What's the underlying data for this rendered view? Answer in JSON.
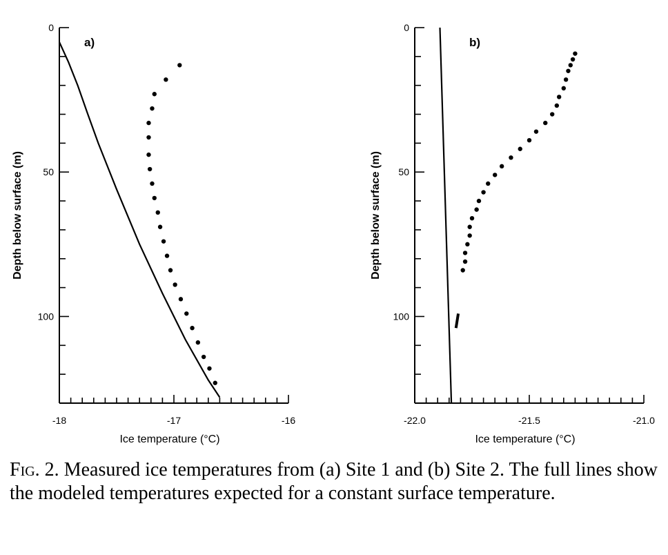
{
  "chart_data": [
    {
      "type": "scatter",
      "panel_label": "a)",
      "xlabel": "Ice temperature (°C)",
      "ylabel": "Depth below surface (m)",
      "xlim": [
        -18,
        -16
      ],
      "ylim": [
        130,
        0
      ],
      "x_ticks": [
        -18,
        -17,
        -16
      ],
      "x_tick_labels": [
        "-18",
        "-17",
        "-16"
      ],
      "x_minor_step": 0.1,
      "y_ticks": [
        0,
        50,
        100
      ],
      "y_tick_labels": [
        "0",
        "50",
        "100"
      ],
      "y_minor_step": 10,
      "grid": false,
      "series": [
        {
          "kind": "points",
          "points": [
            [
              -16.95,
              13
            ],
            [
              -17.07,
              18
            ],
            [
              -17.17,
              23
            ],
            [
              -17.19,
              28
            ],
            [
              -17.22,
              33
            ],
            [
              -17.22,
              38
            ],
            [
              -17.22,
              44
            ],
            [
              -17.21,
              49
            ],
            [
              -17.19,
              54
            ],
            [
              -17.17,
              59
            ],
            [
              -17.14,
              64
            ],
            [
              -17.12,
              69
            ],
            [
              -17.09,
              74
            ],
            [
              -17.06,
              79
            ],
            [
              -17.03,
              84
            ],
            [
              -16.99,
              89
            ],
            [
              -16.94,
              94
            ],
            [
              -16.89,
              99
            ],
            [
              -16.84,
              104
            ],
            [
              -16.79,
              109
            ],
            [
              -16.74,
              114
            ],
            [
              -16.69,
              118
            ],
            [
              -16.64,
              123
            ]
          ]
        },
        {
          "kind": "line",
          "points": [
            [
              -18.0,
              5
            ],
            [
              -17.92,
              12
            ],
            [
              -17.84,
              20
            ],
            [
              -17.76,
              29
            ],
            [
              -17.66,
              40
            ],
            [
              -17.5,
              56
            ],
            [
              -17.3,
              75
            ],
            [
              -17.1,
              92
            ],
            [
              -16.9,
              108
            ],
            [
              -16.7,
              122
            ],
            [
              -16.6,
              128
            ]
          ]
        }
      ]
    },
    {
      "type": "scatter",
      "panel_label": "b)",
      "xlabel": "Ice temperature (°C)",
      "ylabel": "Depth below surface (m)",
      "xlim": [
        -22.0,
        -21.0
      ],
      "ylim": [
        130,
        0
      ],
      "x_ticks": [
        -22.0,
        -21.5,
        -21.0
      ],
      "x_tick_labels": [
        "-22.0",
        "-21.5",
        "-21.0"
      ],
      "x_minor_step": 0.05,
      "y_ticks": [
        0,
        50,
        100
      ],
      "y_tick_labels": [
        "0",
        "50",
        "100"
      ],
      "y_minor_step": 10,
      "grid": false,
      "series": [
        {
          "kind": "points",
          "points": [
            [
              -21.3,
              9
            ],
            [
              -21.31,
              11
            ],
            [
              -21.32,
              13
            ],
            [
              -21.33,
              15
            ],
            [
              -21.34,
              18
            ],
            [
              -21.35,
              21
            ],
            [
              -21.37,
              24
            ],
            [
              -21.38,
              27
            ],
            [
              -21.4,
              30
            ],
            [
              -21.43,
              33
            ],
            [
              -21.47,
              36
            ],
            [
              -21.5,
              39
            ],
            [
              -21.54,
              42
            ],
            [
              -21.58,
              45
            ],
            [
              -21.62,
              48
            ],
            [
              -21.65,
              51
            ],
            [
              -21.68,
              54
            ],
            [
              -21.7,
              57
            ],
            [
              -21.72,
              60
            ],
            [
              -21.73,
              63
            ],
            [
              -21.75,
              66
            ],
            [
              -21.76,
              69
            ],
            [
              -21.76,
              72
            ],
            [
              -21.77,
              75
            ],
            [
              -21.78,
              78
            ],
            [
              -21.78,
              81
            ],
            [
              -21.79,
              84
            ]
          ]
        },
        {
          "kind": "line",
          "points": [
            [
              -21.89,
              0
            ],
            [
              -21.84,
              130
            ]
          ]
        },
        {
          "kind": "segment",
          "points": [
            [
              -21.81,
              99
            ],
            [
              -21.82,
              104
            ]
          ]
        }
      ]
    }
  ],
  "caption": {
    "fig_label": "Fig. 2.",
    "text": " Measured ice temperatures from (a) Site 1 and (b) Site 2. The full lines show the modeled temperatures expected for a constant surface temperature."
  },
  "colors": {
    "ink": "#000000",
    "background": "#ffffff"
  }
}
